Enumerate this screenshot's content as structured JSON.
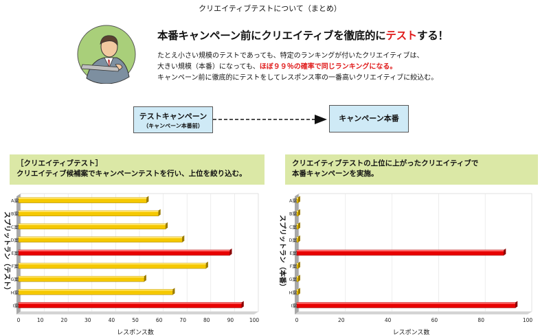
{
  "page_title": "クリエイティブテストについて（まとめ）",
  "headline": {
    "before": "本番キャンペーン前にクリエイティブを徹底的に",
    "highlight": "テスト",
    "after": "する！"
  },
  "body": {
    "line1": "たとえ小さい規模のテストであっても、特定のランキングが付いたクリエイティブは、",
    "line2_before": "大きい規模（本番）になっても、",
    "line2_highlight": "ほぼ９９％の確率で同じランキングになる。",
    "line3": "キャンペーン前に徹底的にテストをしてレスポンス率の一番高いクリエイティブに絞込む。"
  },
  "flow": {
    "test_title": "テストキャンペーン",
    "test_sub": "（キャンペーン本番前）",
    "main_title": "キャンペーン本番"
  },
  "panels": {
    "left_line1": "［クリエイティブテスト］",
    "left_line2": "クリエイティブ候補案でキャンペーンテストを行い、上位を絞り込む。",
    "right_line1": "クリエイティブテストの上位に上がったクリエイティブで",
    "right_line2": "本番キャンペーンを実施。"
  },
  "colors": {
    "yellow_bar": "#f5c800",
    "red_bar": "#e80000",
    "highlight_red": "#e01b1b",
    "panel_green": "#dbe8a6",
    "flow_blue": "#cfeaf6"
  },
  "chart_data": [
    {
      "type": "bar",
      "orientation": "horizontal",
      "categories": [
        "A案",
        "B案",
        "C案",
        "D案",
        "E案",
        "F案",
        "G案",
        "H案",
        "I案"
      ],
      "values": [
        53,
        58,
        61,
        68,
        88,
        78,
        52,
        64,
        93
      ],
      "highlight": [
        "E案",
        "I案"
      ],
      "xlim": [
        0,
        100
      ],
      "xticks": [
        0,
        10,
        20,
        30,
        40,
        50,
        60,
        70,
        80,
        90,
        100
      ],
      "xlabel": "レスポンス数",
      "ylabel": "スプリットラン（テスト）",
      "grid": true
    },
    {
      "type": "bar",
      "orientation": "horizontal",
      "categories": [
        "A案",
        "B案",
        "C案",
        "D案",
        "E案",
        "F案",
        "G案",
        "H案",
        "I案"
      ],
      "values": [
        0,
        0,
        0,
        0,
        88,
        0,
        0,
        0,
        93
      ],
      "highlight": [
        "E案",
        "I案"
      ],
      "xlim": [
        0,
        100
      ],
      "xticks": [
        0,
        20,
        40,
        60,
        80,
        100
      ],
      "xlabel": "レスポンス数",
      "ylabel": "スプリットラン（本番）",
      "grid": true
    }
  ]
}
